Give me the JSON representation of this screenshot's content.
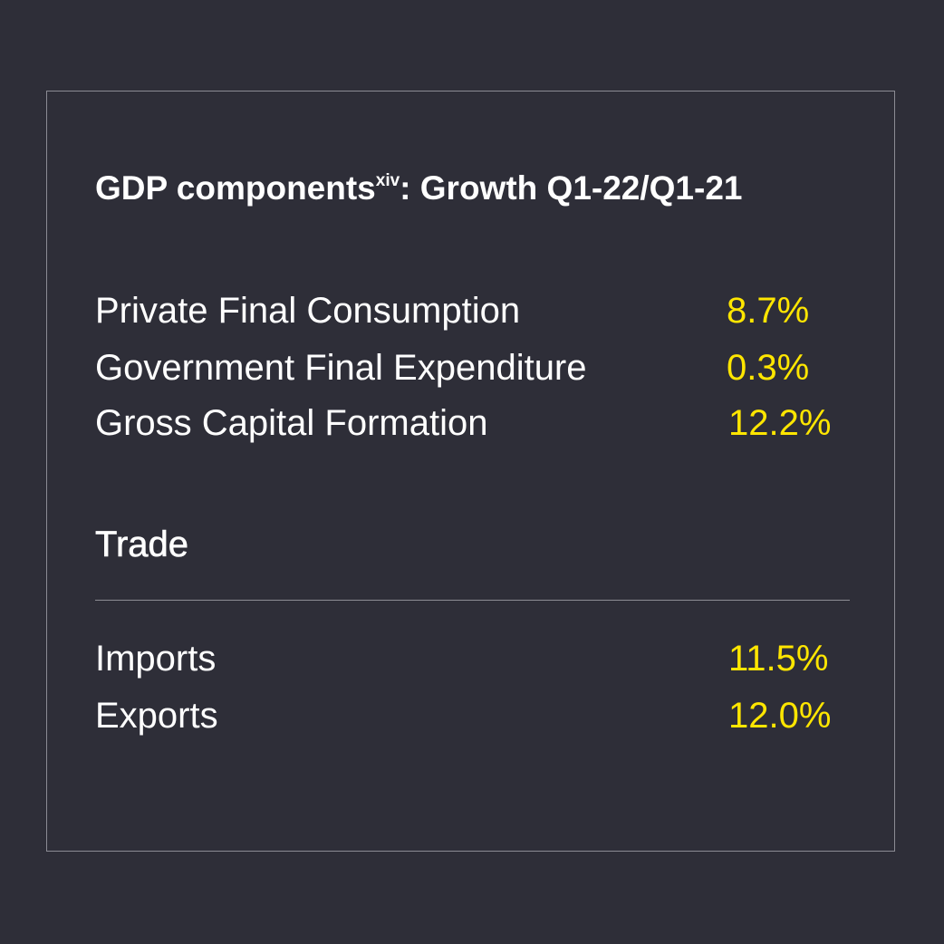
{
  "card": {
    "title_main": "GDP components",
    "title_sup": "xiv",
    "title_rest": ": Growth Q1-22/Q1-21",
    "components": [
      {
        "label": "Private Final Consumption",
        "value": "8.7%"
      },
      {
        "label": "Government Final Expenditure",
        "value": "0.3%"
      },
      {
        "label": "Gross Capital Formation",
        "value": "12.2%"
      }
    ],
    "trade_heading": "Trade",
    "trade": [
      {
        "label": "Imports",
        "value": "11.5%"
      },
      {
        "label": "Exports",
        "value": "12.0%"
      }
    ]
  },
  "colors": {
    "background": "#2e2e38",
    "accent": "#ffe600",
    "text": "#ffffff",
    "border": "#8c8c94"
  }
}
